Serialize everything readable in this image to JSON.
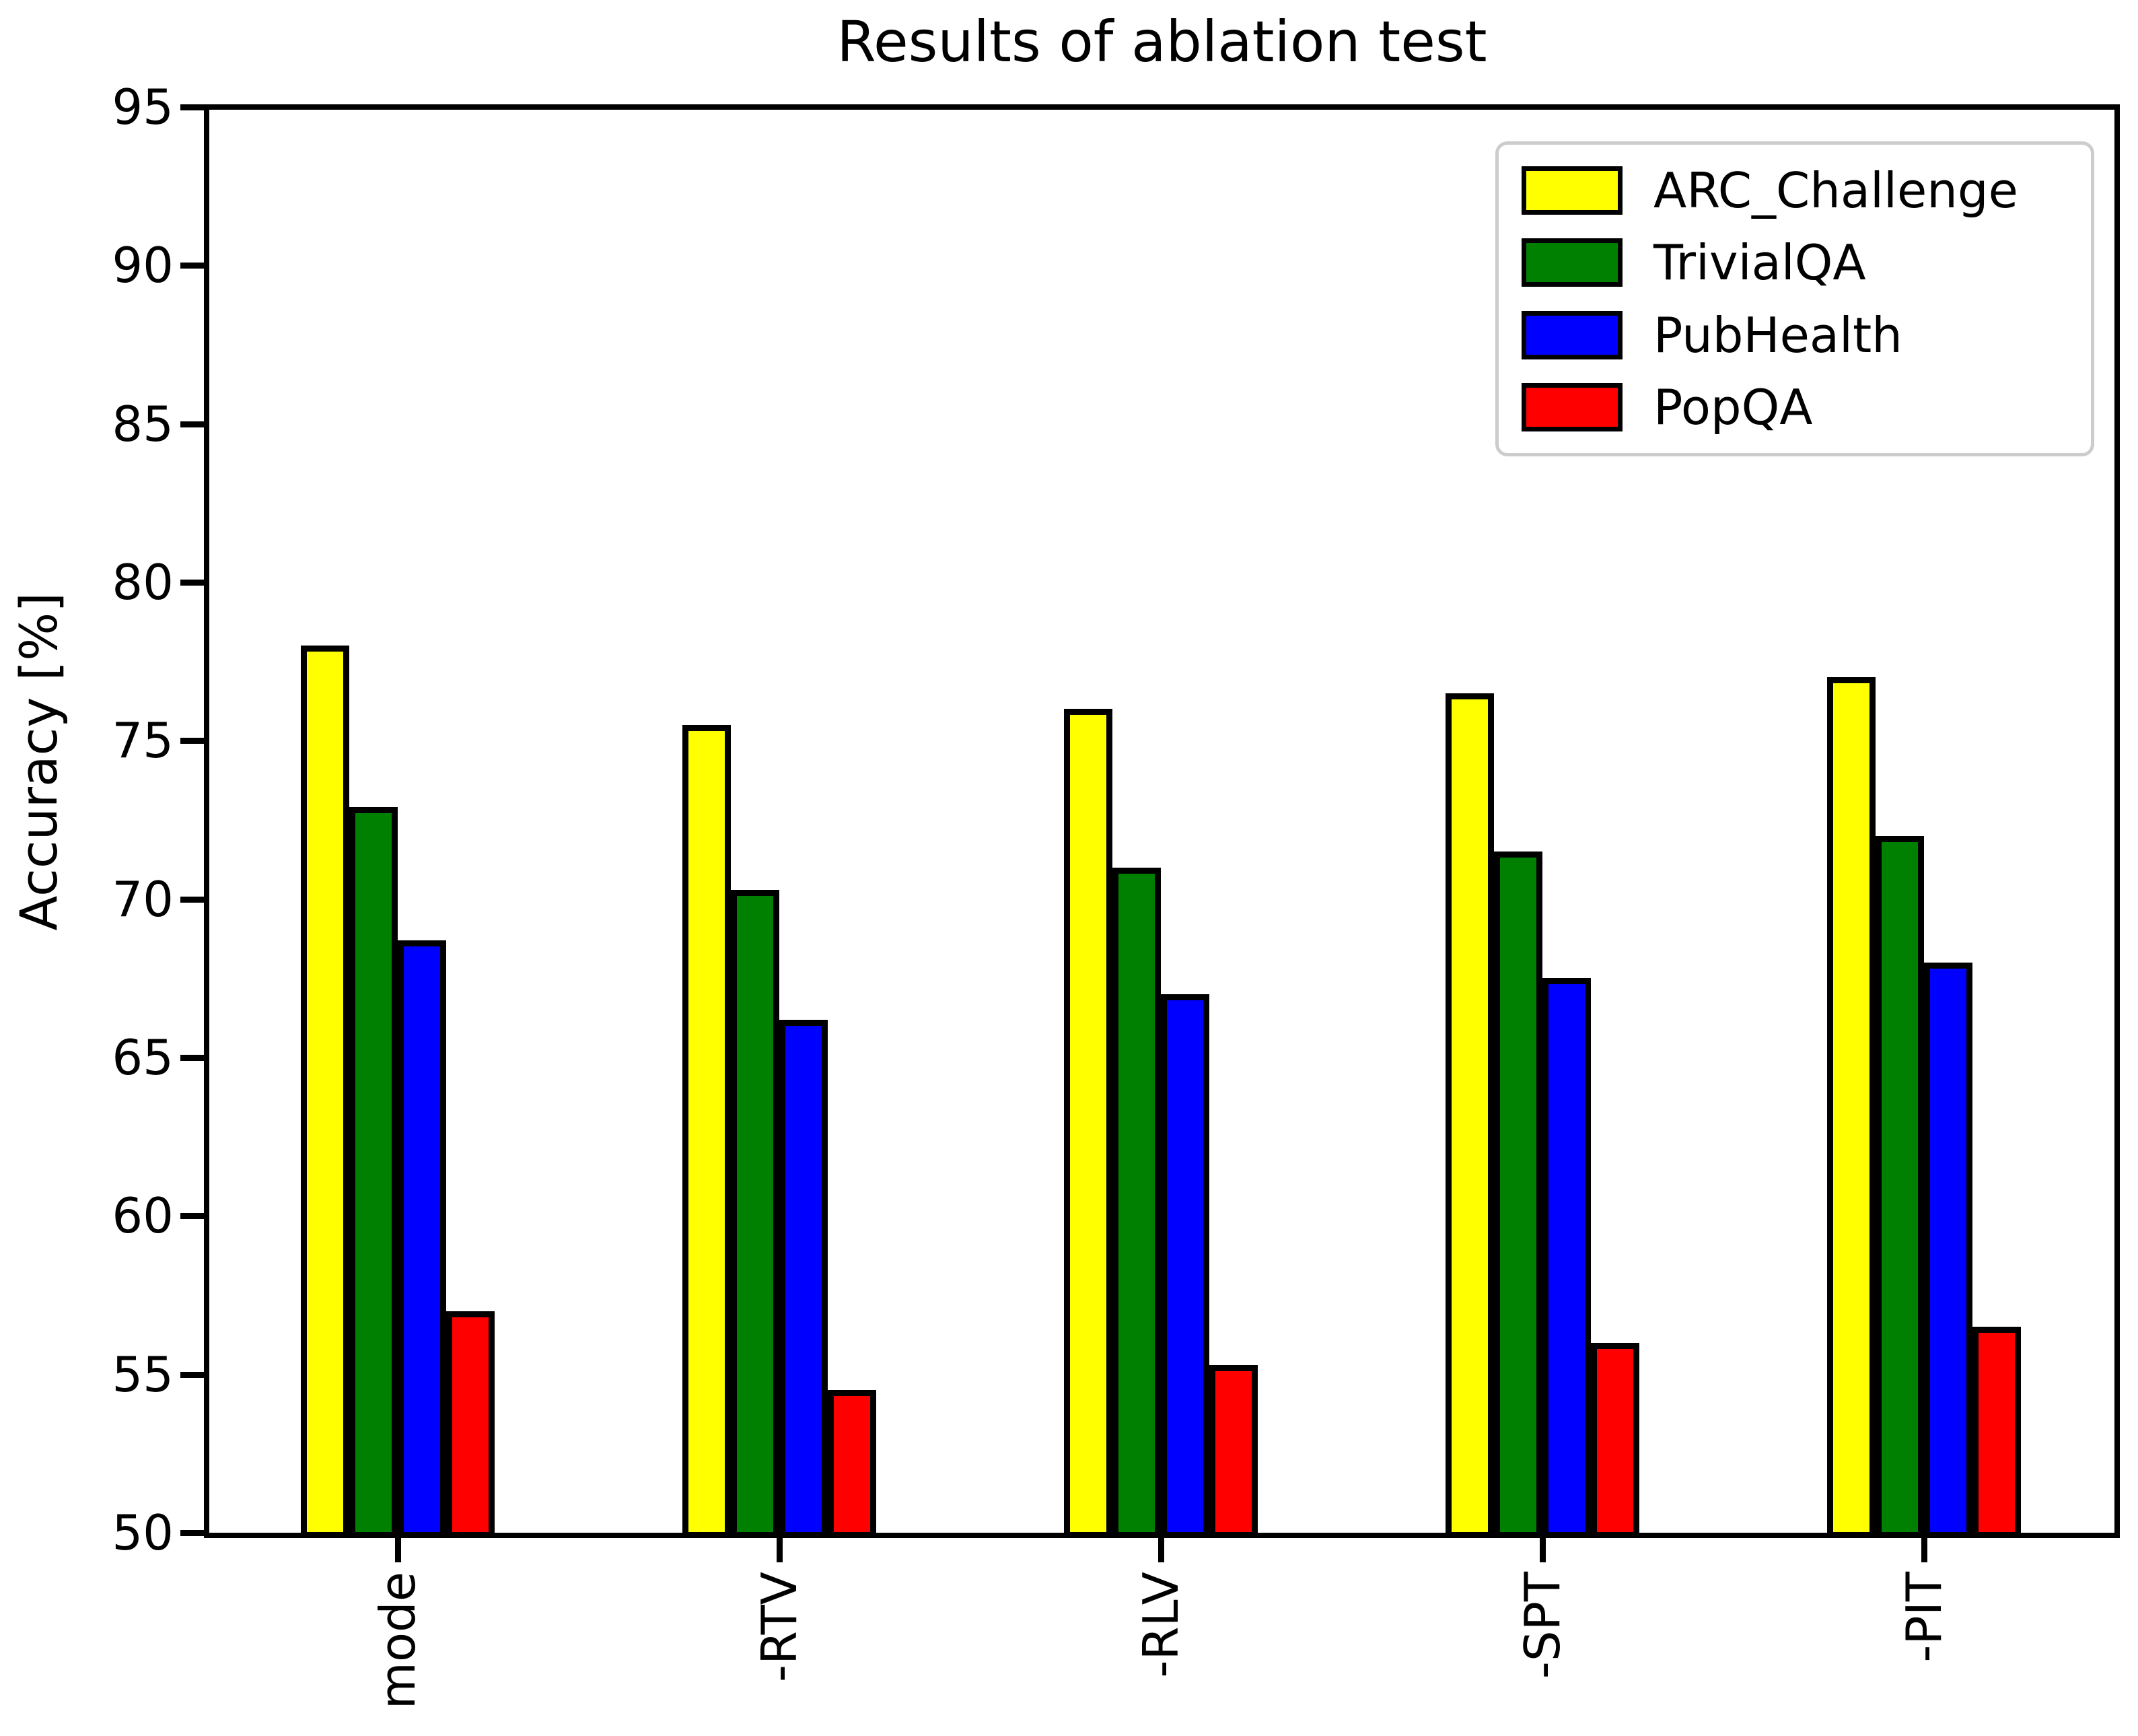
{
  "figure": {
    "title": "Results of ablation test",
    "ylabel": "Accuracy [%]"
  },
  "chart_data": {
    "type": "bar",
    "title": "Results of ablation test",
    "xlabel": "",
    "ylabel": "Accuracy [%]",
    "ylim": [
      50,
      95
    ],
    "ytick_labels": [
      "50",
      "55",
      "60",
      "65",
      "70",
      "75",
      "80",
      "85",
      "90",
      "95"
    ],
    "grid": false,
    "legend_position": "upper right",
    "categories": [
      "mode",
      "-RTV",
      "-RLV",
      "-SPT",
      "-PIT"
    ],
    "series": [
      {
        "name": "ARC_Challenge",
        "color": "#ffff00",
        "values": [
          78.0,
          75.5,
          76.0,
          76.5,
          77.0
        ]
      },
      {
        "name": "TrivialQA",
        "color": "#008000",
        "values": [
          72.9,
          70.3,
          71.0,
          71.5,
          72.0
        ]
      },
      {
        "name": "PubHealth",
        "color": "#0000ff",
        "values": [
          68.7,
          66.2,
          67.0,
          67.5,
          68.0
        ]
      },
      {
        "name": "PopQA",
        "color": "#ff0000",
        "values": [
          57.0,
          54.5,
          55.3,
          56.0,
          56.5
        ]
      }
    ],
    "bar_edge_color": "#000000",
    "axis_color": "#000000",
    "background_color": "#ffffff"
  }
}
